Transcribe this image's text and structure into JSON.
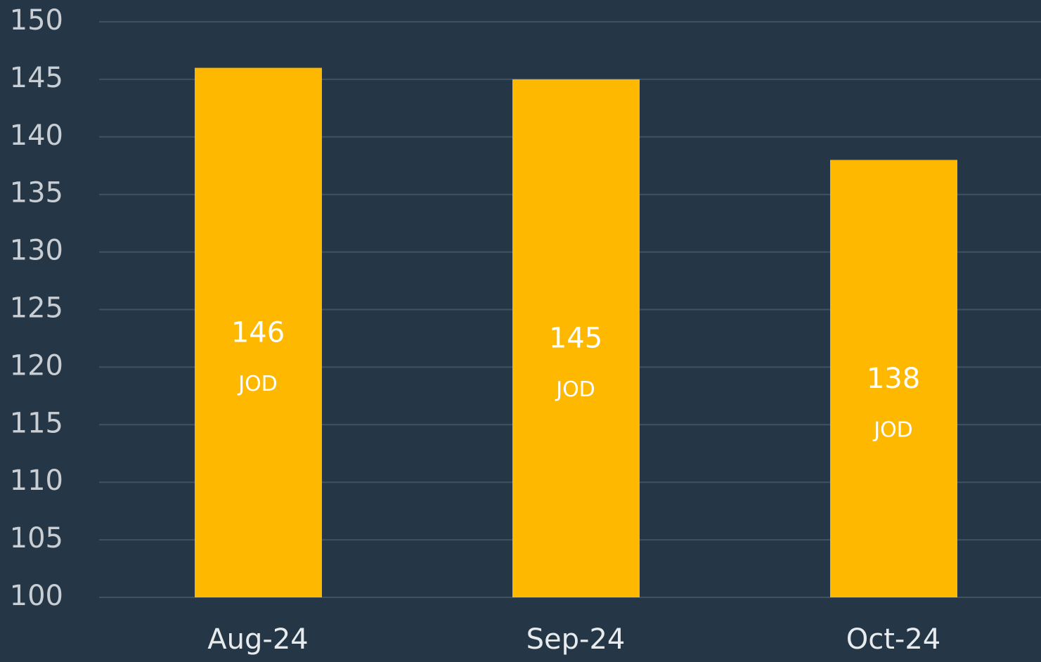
{
  "chart_data": {
    "type": "bar",
    "categories": [
      "Aug-24",
      "Sep-24",
      "Oct-24"
    ],
    "values": [
      146,
      145,
      138
    ],
    "unit": "JOD",
    "color": "#ffb800",
    "ylim": [
      100,
      150
    ],
    "yticks": [
      100,
      105,
      110,
      115,
      120,
      125,
      130,
      135,
      140,
      145,
      150
    ],
    "grid": true
  }
}
